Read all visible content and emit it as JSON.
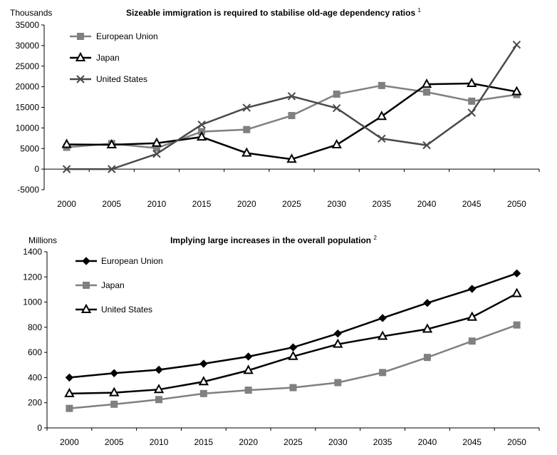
{
  "chart_data": [
    {
      "type": "line",
      "title": "Sizeable immigration is required to stabilise old-age dependency ratios",
      "title_note": "1",
      "ylabel": "Thousands",
      "categories": [
        "2000",
        "2005",
        "2010",
        "2015",
        "2020",
        "2025",
        "2030",
        "2035",
        "2040",
        "2045",
        "2050"
      ],
      "ylim": [
        -5000,
        35000
      ],
      "yticks": [
        -5000,
        0,
        5000,
        10000,
        15000,
        20000,
        25000,
        30000,
        35000
      ],
      "ytick_labels": [
        "-5000",
        "0",
        "5000",
        "10000",
        "15000",
        "20000",
        "25000",
        "30000",
        "35000"
      ],
      "legend_position": "top-left",
      "series": [
        {
          "name": "European Union",
          "marker": "square",
          "color": "#808080",
          "values": [
            5300,
            6200,
            5100,
            9100,
            9600,
            13000,
            18200,
            20300,
            18700,
            16500,
            18100
          ]
        },
        {
          "name": "Japan",
          "marker": "triangle",
          "color": "#000000",
          "values": [
            6000,
            5900,
            6300,
            7800,
            3900,
            2400,
            5900,
            12800,
            20600,
            20800,
            18800
          ]
        },
        {
          "name": "United States",
          "marker": "x",
          "color": "#4a4a4a",
          "values": [
            0,
            0,
            3700,
            10800,
            14900,
            17700,
            14800,
            7400,
            5800,
            13700,
            30200
          ]
        }
      ]
    },
    {
      "type": "line",
      "title": "Implying large increases in the overall population",
      "title_note": "2",
      "ylabel": "Millions",
      "categories": [
        "2000",
        "2005",
        "2010",
        "2015",
        "2020",
        "2025",
        "2030",
        "2035",
        "2040",
        "2045",
        "2050"
      ],
      "ylim": [
        0,
        1400
      ],
      "yticks": [
        0,
        200,
        400,
        600,
        800,
        1000,
        1200,
        1400
      ],
      "ytick_labels": [
        "0",
        "200",
        "400",
        "600",
        "800",
        "1000",
        "1200",
        "1400"
      ],
      "legend_position": "top-left",
      "series": [
        {
          "name": "European Union",
          "marker": "diamond",
          "color": "#000000",
          "values": [
            400,
            435,
            462,
            510,
            567,
            640,
            750,
            873,
            993,
            1105,
            1228
          ]
        },
        {
          "name": "Japan",
          "marker": "square",
          "color": "#808080",
          "values": [
            155,
            188,
            225,
            273,
            300,
            320,
            360,
            440,
            560,
            690,
            818
          ]
        },
        {
          "name": "United States",
          "marker": "triangle",
          "color": "#000000",
          "values": [
            273,
            280,
            305,
            367,
            457,
            568,
            665,
            728,
            785,
            880,
            1068
          ]
        }
      ]
    }
  ]
}
